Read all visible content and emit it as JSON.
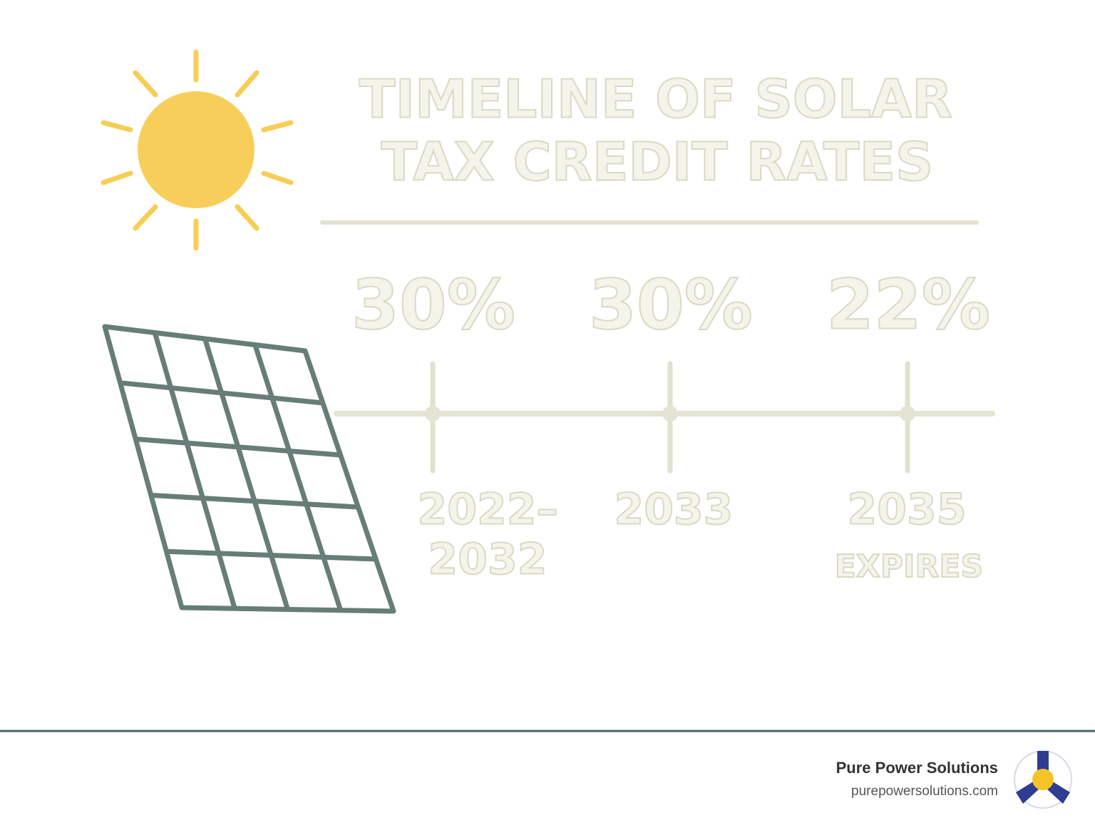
{
  "title_lines": [
    "TIMELINE OF SOLAR",
    "TAX CREDIT RATES"
  ],
  "timeline": [
    {
      "rate": "30%",
      "year_lines": [
        "2022–",
        "2032"
      ]
    },
    {
      "rate": "30%",
      "year_lines": [
        "2033"
      ]
    },
    {
      "rate": "22%",
      "year_lines": [
        "2035"
      ],
      "note": "EXPIRES"
    }
  ],
  "footer": {
    "company": "Pure Power Solutions",
    "website": "purepowersolutions.com"
  }
}
